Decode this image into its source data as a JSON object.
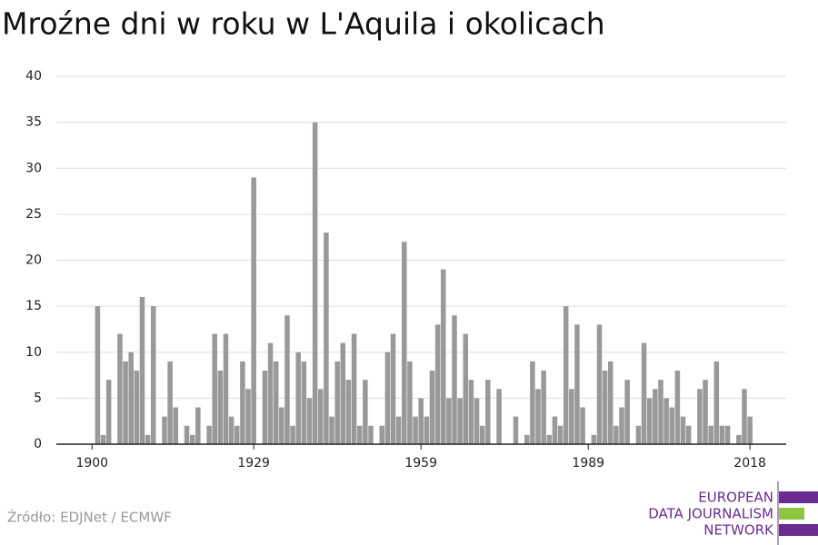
{
  "chart_data": {
    "type": "bar",
    "title": "Mroźne dni w roku w L'Aquila i okolicach",
    "source": "Źródło: EDJNet / ECMWF",
    "logo": [
      "EUROPEAN",
      "DATA JOURNALISM",
      "NETWORK"
    ],
    "color": "#999999",
    "x": [
      1900,
      1901,
      1902,
      1903,
      1904,
      1905,
      1906,
      1907,
      1908,
      1909,
      1910,
      1911,
      1912,
      1913,
      1914,
      1915,
      1916,
      1917,
      1918,
      1919,
      1920,
      1921,
      1922,
      1923,
      1924,
      1925,
      1926,
      1927,
      1928,
      1929,
      1930,
      1931,
      1932,
      1933,
      1934,
      1935,
      1936,
      1937,
      1938,
      1939,
      1940,
      1941,
      1942,
      1943,
      1944,
      1945,
      1946,
      1947,
      1948,
      1949,
      1950,
      1951,
      1952,
      1953,
      1954,
      1955,
      1956,
      1957,
      1958,
      1959,
      1960,
      1961,
      1962,
      1963,
      1964,
      1965,
      1966,
      1967,
      1968,
      1969,
      1970,
      1971,
      1972,
      1973,
      1974,
      1975,
      1976,
      1977,
      1978,
      1979,
      1980,
      1981,
      1982,
      1983,
      1984,
      1985,
      1986,
      1987,
      1988,
      1989,
      1990,
      1991,
      1992,
      1993,
      1994,
      1995,
      1996,
      1997,
      1998,
      1999,
      2000,
      2001,
      2002,
      2003,
      2004,
      2005,
      2006,
      2007,
      2008,
      2009,
      2010,
      2011,
      2012,
      2013,
      2014,
      2015,
      2016,
      2017,
      2018
    ],
    "values": [
      0,
      15,
      1,
      7,
      0,
      12,
      9,
      10,
      8,
      16,
      1,
      15,
      0,
      3,
      9,
      4,
      0,
      2,
      1,
      4,
      0,
      2,
      12,
      8,
      12,
      3,
      2,
      9,
      6,
      29,
      0,
      8,
      11,
      9,
      4,
      14,
      2,
      10,
      9,
      5,
      35,
      6,
      23,
      3,
      9,
      11,
      7,
      12,
      2,
      7,
      2,
      0,
      2,
      10,
      12,
      3,
      22,
      9,
      3,
      5,
      3,
      8,
      13,
      19,
      5,
      14,
      5,
      12,
      7,
      5,
      2,
      7,
      0,
      6,
      0,
      0,
      3,
      0,
      1,
      9,
      6,
      8,
      1,
      3,
      2,
      15,
      6,
      13,
      4,
      0,
      1,
      13,
      8,
      9,
      2,
      4,
      7,
      0,
      2,
      11,
      5,
      6,
      7,
      5,
      4,
      8,
      3,
      2,
      0,
      6,
      7,
      2,
      9,
      2,
      2,
      0,
      1,
      6,
      3
    ],
    "xlim": [
      1893.6,
      2024.5
    ],
    "xticks": [
      1900,
      1929,
      1959,
      1989,
      2018
    ],
    "ylim": [
      0,
      40
    ],
    "yticks": [
      0,
      5,
      10,
      15,
      20,
      25,
      30,
      35,
      40
    ],
    "grid": true
  }
}
